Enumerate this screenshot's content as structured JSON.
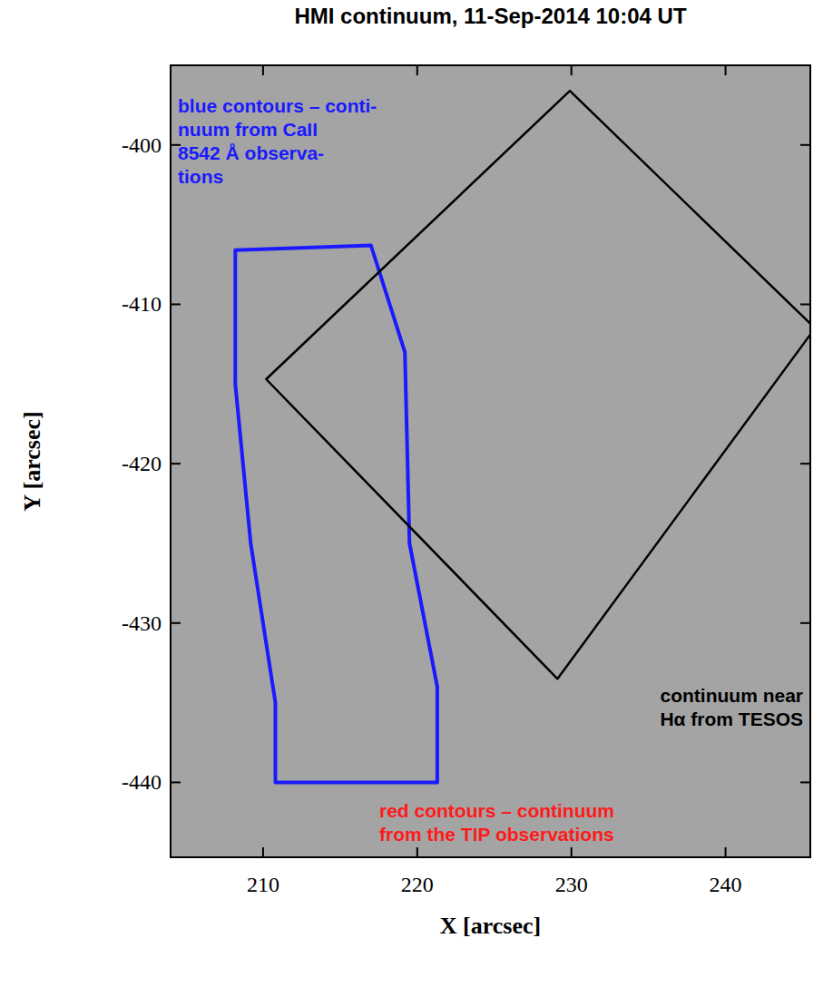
{
  "chart_data": {
    "type": "image",
    "title": "HMI continuum, 11-Sep-2014 10:04 UT",
    "x_label": "X [arcsec]",
    "y_label": "Y [arcsec]",
    "xlim": [
      204,
      245.5
    ],
    "ylim": [
      -444.7,
      -395
    ],
    "xticks": [
      210,
      220,
      230,
      240
    ],
    "yticks": [
      -400,
      -410,
      -420,
      -430,
      -440
    ],
    "regions": [
      {
        "color": "#1a1aff",
        "vertices": [
          [
            208.2,
            -406.6
          ],
          [
            217.0,
            -406.3
          ],
          [
            219.2,
            -413.0
          ],
          [
            219.5,
            -425.0
          ],
          [
            221.3,
            -434.0
          ],
          [
            221.3,
            -440.0
          ],
          [
            210.8,
            -440.0
          ],
          [
            210.8,
            -435.0
          ],
          [
            209.2,
            -425.0
          ],
          [
            208.2,
            -415.0
          ]
        ]
      },
      {
        "color": "#000000",
        "vertices": [
          [
            229.9,
            -396.6
          ],
          [
            245.8,
            -411.5
          ],
          [
            229.1,
            -433.5
          ],
          [
            210.2,
            -414.7
          ]
        ]
      }
    ],
    "annotations": [
      {
        "color": "#1a1aff",
        "lines": [
          "blue contours – conti-",
          "nuum from CaII",
          "8542 Å observa-",
          "tions"
        ]
      },
      {
        "color": "#000000",
        "lines": [
          "continuum near",
          "Hα from TESOS"
        ]
      },
      {
        "color": "#ff1a1a",
        "lines": [
          "red contours – continuum",
          "from the TIP observations"
        ]
      }
    ]
  }
}
